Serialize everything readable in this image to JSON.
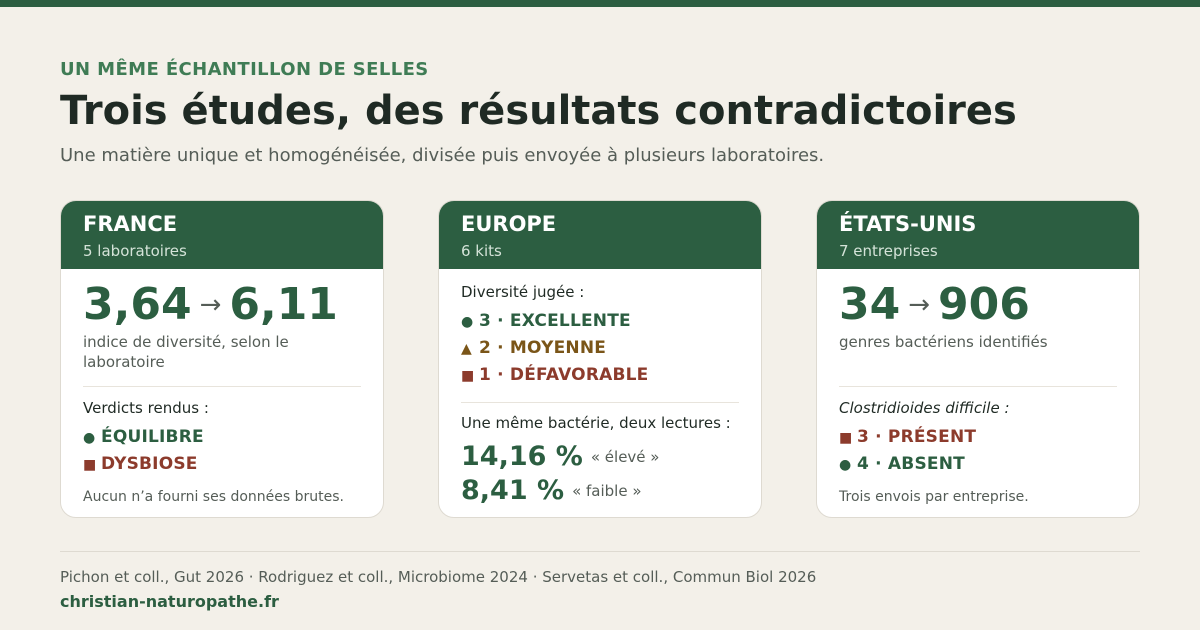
{
  "header": {
    "eyebrow": "UN MÊME ÉCHANTILLON DE SELLES",
    "title": "Trois études, des résultats contradictoires",
    "subtitle": "Une matière unique et homogénéisée, divisée puis envoyée à plusieurs laboratoires."
  },
  "colors": {
    "accent": "#2c5e41",
    "negative": "#8c3b2c",
    "medium": "#7a5518",
    "background": "#f3f0e9"
  },
  "france": {
    "name": "FRANCE",
    "sub": "5 laboratoires",
    "from": "3,64",
    "arrow": "→",
    "to": "6,11",
    "desc": "indice de diversité, selon le laboratoire",
    "verdicts_label": "Verdicts rendus :",
    "verdicts": [
      {
        "marker": "●",
        "text": "ÉQUILIBRE"
      },
      {
        "marker": "■",
        "text": "DYSBIOSE"
      }
    ],
    "note": "Aucun n’a fourni ses données brutes."
  },
  "europe": {
    "name": "EUROPE",
    "sub": "6 kits",
    "diversity_label": "Diversité jugée :",
    "ratings": [
      {
        "marker": "●",
        "text": "3 · EXCELLENTE"
      },
      {
        "marker": "▲",
        "text": "2 · MOYENNE"
      },
      {
        "marker": "■",
        "text": "1 · DÉFAVORABLE"
      }
    ],
    "readings_label": "Une même bactérie, deux lectures :",
    "readings": [
      {
        "value": "14,16 %",
        "tag": "« élevé »"
      },
      {
        "value": "8,41 %",
        "tag": "« faible »"
      }
    ]
  },
  "usa": {
    "name": "ÉTATS-UNIS",
    "sub": "7 entreprises",
    "from": "34",
    "arrow": "→",
    "to": "906",
    "desc": "genres bactériens identifiés",
    "species_label": "Clostridioides difficile :",
    "results": [
      {
        "marker": "■",
        "text": "3 · PRÉSENT"
      },
      {
        "marker": "●",
        "text": "4 · ABSENT"
      }
    ],
    "note": "Trois envois par entreprise."
  },
  "footer": {
    "sources": "Pichon et coll., Gut 2026 · Rodriguez et coll., Microbiome 2024 · Servetas et coll., Commun Biol 2026",
    "site": "christian-naturopathe.fr"
  }
}
